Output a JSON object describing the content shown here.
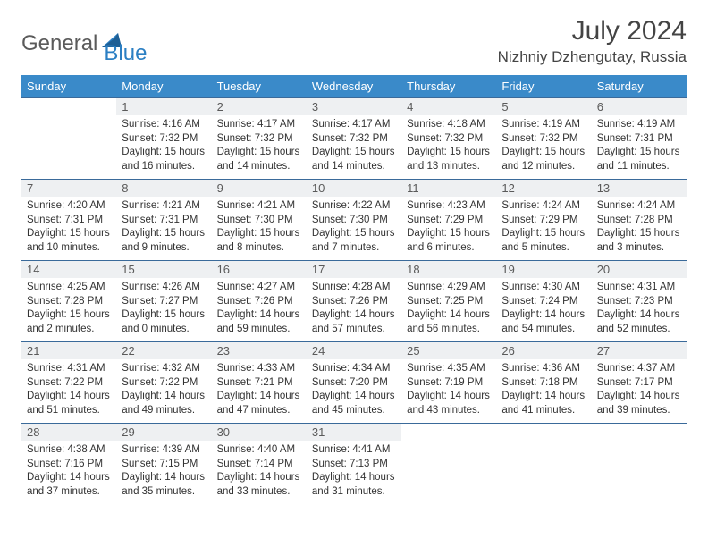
{
  "logo": {
    "text1": "General",
    "text2": "Blue"
  },
  "title": "July 2024",
  "location": "Nizhniy Dzhengutay, Russia",
  "colors": {
    "header_bg": "#3a8ac9",
    "header_text": "#ffffff",
    "daynum_bg": "#eef0f2",
    "border": "#3a6a9a",
    "logo_gray": "#5a5a5a",
    "logo_blue": "#2b7fc3"
  },
  "weekdays": [
    "Sunday",
    "Monday",
    "Tuesday",
    "Wednesday",
    "Thursday",
    "Friday",
    "Saturday"
  ],
  "weeks": [
    [
      {
        "num": "",
        "lines": []
      },
      {
        "num": "1",
        "lines": [
          "Sunrise: 4:16 AM",
          "Sunset: 7:32 PM",
          "Daylight: 15 hours",
          "and 16 minutes."
        ]
      },
      {
        "num": "2",
        "lines": [
          "Sunrise: 4:17 AM",
          "Sunset: 7:32 PM",
          "Daylight: 15 hours",
          "and 14 minutes."
        ]
      },
      {
        "num": "3",
        "lines": [
          "Sunrise: 4:17 AM",
          "Sunset: 7:32 PM",
          "Daylight: 15 hours",
          "and 14 minutes."
        ]
      },
      {
        "num": "4",
        "lines": [
          "Sunrise: 4:18 AM",
          "Sunset: 7:32 PM",
          "Daylight: 15 hours",
          "and 13 minutes."
        ]
      },
      {
        "num": "5",
        "lines": [
          "Sunrise: 4:19 AM",
          "Sunset: 7:32 PM",
          "Daylight: 15 hours",
          "and 12 minutes."
        ]
      },
      {
        "num": "6",
        "lines": [
          "Sunrise: 4:19 AM",
          "Sunset: 7:31 PM",
          "Daylight: 15 hours",
          "and 11 minutes."
        ]
      }
    ],
    [
      {
        "num": "7",
        "lines": [
          "Sunrise: 4:20 AM",
          "Sunset: 7:31 PM",
          "Daylight: 15 hours",
          "and 10 minutes."
        ]
      },
      {
        "num": "8",
        "lines": [
          "Sunrise: 4:21 AM",
          "Sunset: 7:31 PM",
          "Daylight: 15 hours",
          "and 9 minutes."
        ]
      },
      {
        "num": "9",
        "lines": [
          "Sunrise: 4:21 AM",
          "Sunset: 7:30 PM",
          "Daylight: 15 hours",
          "and 8 minutes."
        ]
      },
      {
        "num": "10",
        "lines": [
          "Sunrise: 4:22 AM",
          "Sunset: 7:30 PM",
          "Daylight: 15 hours",
          "and 7 minutes."
        ]
      },
      {
        "num": "11",
        "lines": [
          "Sunrise: 4:23 AM",
          "Sunset: 7:29 PM",
          "Daylight: 15 hours",
          "and 6 minutes."
        ]
      },
      {
        "num": "12",
        "lines": [
          "Sunrise: 4:24 AM",
          "Sunset: 7:29 PM",
          "Daylight: 15 hours",
          "and 5 minutes."
        ]
      },
      {
        "num": "13",
        "lines": [
          "Sunrise: 4:24 AM",
          "Sunset: 7:28 PM",
          "Daylight: 15 hours",
          "and 3 minutes."
        ]
      }
    ],
    [
      {
        "num": "14",
        "lines": [
          "Sunrise: 4:25 AM",
          "Sunset: 7:28 PM",
          "Daylight: 15 hours",
          "and 2 minutes."
        ]
      },
      {
        "num": "15",
        "lines": [
          "Sunrise: 4:26 AM",
          "Sunset: 7:27 PM",
          "Daylight: 15 hours",
          "and 0 minutes."
        ]
      },
      {
        "num": "16",
        "lines": [
          "Sunrise: 4:27 AM",
          "Sunset: 7:26 PM",
          "Daylight: 14 hours",
          "and 59 minutes."
        ]
      },
      {
        "num": "17",
        "lines": [
          "Sunrise: 4:28 AM",
          "Sunset: 7:26 PM",
          "Daylight: 14 hours",
          "and 57 minutes."
        ]
      },
      {
        "num": "18",
        "lines": [
          "Sunrise: 4:29 AM",
          "Sunset: 7:25 PM",
          "Daylight: 14 hours",
          "and 56 minutes."
        ]
      },
      {
        "num": "19",
        "lines": [
          "Sunrise: 4:30 AM",
          "Sunset: 7:24 PM",
          "Daylight: 14 hours",
          "and 54 minutes."
        ]
      },
      {
        "num": "20",
        "lines": [
          "Sunrise: 4:31 AM",
          "Sunset: 7:23 PM",
          "Daylight: 14 hours",
          "and 52 minutes."
        ]
      }
    ],
    [
      {
        "num": "21",
        "lines": [
          "Sunrise: 4:31 AM",
          "Sunset: 7:22 PM",
          "Daylight: 14 hours",
          "and 51 minutes."
        ]
      },
      {
        "num": "22",
        "lines": [
          "Sunrise: 4:32 AM",
          "Sunset: 7:22 PM",
          "Daylight: 14 hours",
          "and 49 minutes."
        ]
      },
      {
        "num": "23",
        "lines": [
          "Sunrise: 4:33 AM",
          "Sunset: 7:21 PM",
          "Daylight: 14 hours",
          "and 47 minutes."
        ]
      },
      {
        "num": "24",
        "lines": [
          "Sunrise: 4:34 AM",
          "Sunset: 7:20 PM",
          "Daylight: 14 hours",
          "and 45 minutes."
        ]
      },
      {
        "num": "25",
        "lines": [
          "Sunrise: 4:35 AM",
          "Sunset: 7:19 PM",
          "Daylight: 14 hours",
          "and 43 minutes."
        ]
      },
      {
        "num": "26",
        "lines": [
          "Sunrise: 4:36 AM",
          "Sunset: 7:18 PM",
          "Daylight: 14 hours",
          "and 41 minutes."
        ]
      },
      {
        "num": "27",
        "lines": [
          "Sunrise: 4:37 AM",
          "Sunset: 7:17 PM",
          "Daylight: 14 hours",
          "and 39 minutes."
        ]
      }
    ],
    [
      {
        "num": "28",
        "lines": [
          "Sunrise: 4:38 AM",
          "Sunset: 7:16 PM",
          "Daylight: 14 hours",
          "and 37 minutes."
        ]
      },
      {
        "num": "29",
        "lines": [
          "Sunrise: 4:39 AM",
          "Sunset: 7:15 PM",
          "Daylight: 14 hours",
          "and 35 minutes."
        ]
      },
      {
        "num": "30",
        "lines": [
          "Sunrise: 4:40 AM",
          "Sunset: 7:14 PM",
          "Daylight: 14 hours",
          "and 33 minutes."
        ]
      },
      {
        "num": "31",
        "lines": [
          "Sunrise: 4:41 AM",
          "Sunset: 7:13 PM",
          "Daylight: 14 hours",
          "and 31 minutes."
        ]
      },
      {
        "num": "",
        "lines": []
      },
      {
        "num": "",
        "lines": []
      },
      {
        "num": "",
        "lines": []
      }
    ]
  ]
}
